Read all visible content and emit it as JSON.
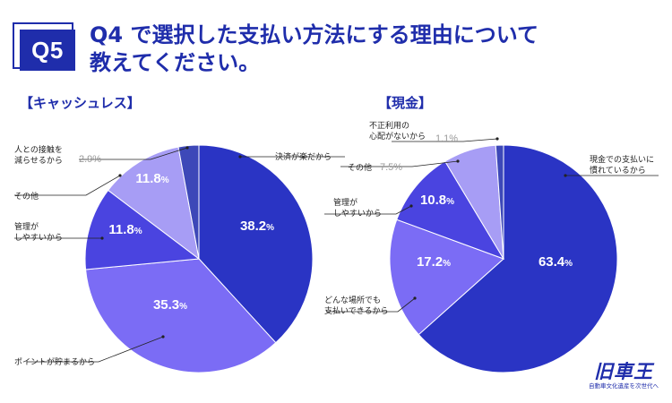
{
  "header": {
    "badge": "Q5",
    "title_line1": "Q4 で選択した支払い方法にする理由について",
    "title_line2": "教えてください。"
  },
  "logo": {
    "main": "旧車王",
    "sub": "自動車文化遺産を次世代へ"
  },
  "colors": {
    "brand": "#1f2dab",
    "label_line": "#222222",
    "small_pct": "#999999"
  },
  "chart_data": [
    {
      "type": "pie",
      "title": "【キャッシュレス】",
      "slices": [
        {
          "label": "決済が楽だから",
          "value": 38.2,
          "display": "38.2",
          "color": "#2a34c4"
        },
        {
          "label": "ポイントが貯まるから",
          "value": 35.3,
          "display": "35.3",
          "color": "#7b6cf5"
        },
        {
          "label": "管理がしやすいから",
          "label_lines": [
            "管理が",
            "しやすいから"
          ],
          "value": 11.8,
          "display": "11.8",
          "color": "#4a44e0"
        },
        {
          "label": "その他",
          "value": 11.8,
          "display": "11.8",
          "color": "#a79df5"
        },
        {
          "label": "人との接触を減らせるから",
          "label_lines": [
            "人との接触を",
            "減らせるから"
          ],
          "value": 2.9,
          "display": "2.9%",
          "color": "#3d48b8"
        }
      ]
    },
    {
      "type": "pie",
      "title": "【現金】",
      "slices": [
        {
          "label": "現金での支払いに慣れているから",
          "label_lines": [
            "現金での支払いに",
            "慣れているから"
          ],
          "value": 63.4,
          "display": "63.4",
          "color": "#2a34c4"
        },
        {
          "label": "どんな場所でも支払いできるから",
          "label_lines": [
            "どんな場所でも",
            "支払いできるから"
          ],
          "value": 17.2,
          "display": "17.2",
          "color": "#7b6cf5"
        },
        {
          "label": "管理がしやすいから",
          "label_lines": [
            "管理が",
            "しやすいから"
          ],
          "value": 10.8,
          "display": "10.8",
          "color": "#4a44e0"
        },
        {
          "label": "その他",
          "value": 7.5,
          "display": "7.5%",
          "color": "#a79df5"
        },
        {
          "label": "不正利用の心配がないから",
          "label_lines": [
            "不正利用の",
            "心配がないから"
          ],
          "value": 1.1,
          "display": "1.1%",
          "color": "#3d48b8"
        }
      ]
    }
  ]
}
